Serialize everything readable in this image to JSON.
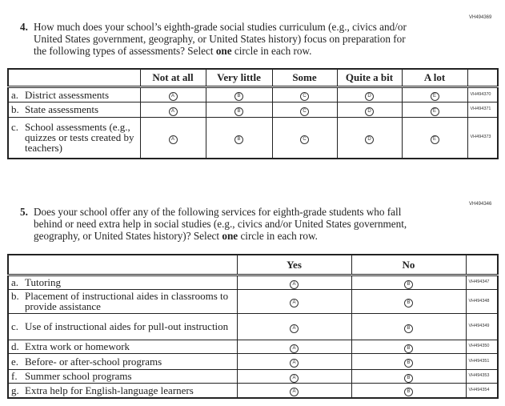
{
  "q4": {
    "code": "VH494369",
    "number": "4.",
    "text_before": "How much does your school’s eighth-grade social studies curriculum (e.g., civics and/or United States government, geography, or United States history) focus on preparation for the following types of assessments? Select ",
    "text_bold": "one",
    "text_after": " circle in each row.",
    "columns": [
      "Not at all",
      "Very little",
      "Some",
      "Quite a bit",
      "A lot"
    ],
    "bubbles": [
      "A",
      "B",
      "C",
      "D",
      "E"
    ],
    "rows": [
      {
        "letter": "a.",
        "label": "District assessments",
        "code": "VH494370"
      },
      {
        "letter": "b.",
        "label": "State assessments",
        "code": "VH494371"
      },
      {
        "letter": "c.",
        "label": "School assessments (e.g., quizzes or tests created by teachers)",
        "code": "VH494373"
      }
    ]
  },
  "q5": {
    "code": "VH494346",
    "number": "5.",
    "text_before": "Does your school offer any of the following services for eighth-grade students who fall behind or need extra help in social studies (e.g., civics and/or United States government, geography, or United States history)? Select ",
    "text_bold": "one",
    "text_after": " circle in each row.",
    "columns": [
      "Yes",
      "No"
    ],
    "bubbles": [
      "A",
      "B"
    ],
    "rows": [
      {
        "letter": "a.",
        "label": "Tutoring",
        "code": "VH494347"
      },
      {
        "letter": "b.",
        "label": "Placement of instructional aides in classrooms to provide assistance",
        "code": "VH494348"
      },
      {
        "letter": "c.",
        "label": "Use of instructional aides for pull-out instruction",
        "code": "VH494349"
      },
      {
        "letter": "d.",
        "label": "Extra work or homework",
        "code": "VH494350"
      },
      {
        "letter": "e.",
        "label": "Before- or after-school programs",
        "code": "VH494351"
      },
      {
        "letter": "f.",
        "label": "Summer school programs",
        "code": "VH494353"
      },
      {
        "letter": "g.",
        "label": "Extra help for English-language learners",
        "code": "VH494354"
      }
    ]
  }
}
